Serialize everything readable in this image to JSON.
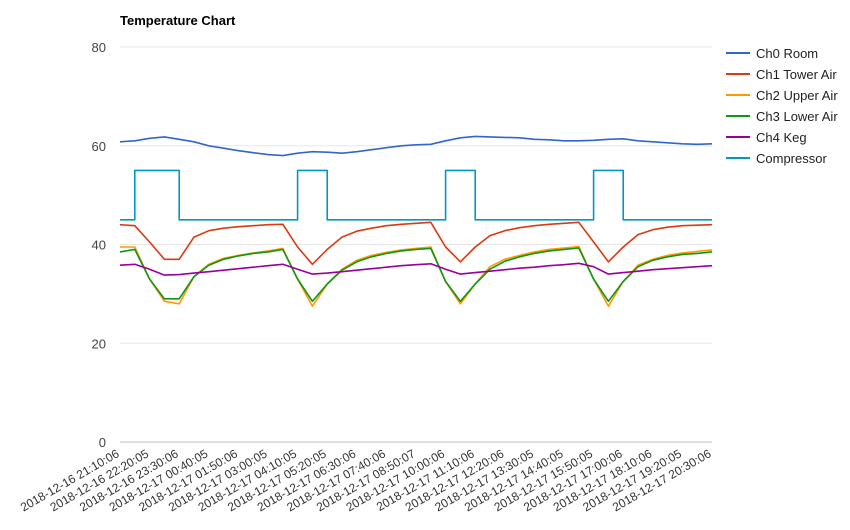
{
  "chart_data": {
    "type": "line",
    "title": "Temperature Chart",
    "xlabel": "",
    "ylabel": "",
    "ylim": [
      0,
      80
    ],
    "yticks": [
      0,
      20,
      40,
      60,
      80
    ],
    "grid": true,
    "legend_position": "right",
    "x_tick_labels": [
      "2018-12-16 21:10:06",
      "2018-12-16 22:20:05",
      "2018-12-16 23:30:06",
      "2018-12-17 00:40:05",
      "2018-12-17 01:50:06",
      "2018-12-17 03:00:05",
      "2018-12-17 04:10:05",
      "2018-12-17 05:20:05",
      "2018-12-17 06:30:06",
      "2018-12-17 07:40:06",
      "2018-12-17 08:50:07",
      "2018-12-17 10:00:06",
      "2018-12-17 11:10:06",
      "2018-12-17 12:20:06",
      "2018-12-17 13:30:05",
      "2018-12-17 14:40:05",
      "2018-12-17 15:50:05",
      "2018-12-17 17:00:06",
      "2018-12-17 18:10:06",
      "2018-12-17 19:20:05",
      "2018-12-17 20:30:06"
    ],
    "x": [
      "2018-12-16 21:10:06",
      "2018-12-16 21:45:00",
      "2018-12-16 22:20:05",
      "2018-12-16 22:55:00",
      "2018-12-16 23:30:06",
      "2018-12-17 00:05:00",
      "2018-12-17 00:40:05",
      "2018-12-17 01:15:00",
      "2018-12-17 01:50:06",
      "2018-12-17 02:25:00",
      "2018-12-17 03:00:05",
      "2018-12-17 03:35:00",
      "2018-12-17 04:10:05",
      "2018-12-17 04:45:00",
      "2018-12-17 05:20:05",
      "2018-12-17 05:55:00",
      "2018-12-17 06:30:06",
      "2018-12-17 07:05:00",
      "2018-12-17 07:40:06",
      "2018-12-17 08:15:00",
      "2018-12-17 08:50:07",
      "2018-12-17 09:25:00",
      "2018-12-17 10:00:06",
      "2018-12-17 10:35:00",
      "2018-12-17 11:10:06",
      "2018-12-17 11:45:00",
      "2018-12-17 12:20:06",
      "2018-12-17 12:55:00",
      "2018-12-17 13:30:05",
      "2018-12-17 14:05:00",
      "2018-12-17 14:40:05",
      "2018-12-17 15:15:00",
      "2018-12-17 15:50:05",
      "2018-12-17 16:25:00",
      "2018-12-17 17:00:06",
      "2018-12-17 17:35:00",
      "2018-12-17 18:10:06",
      "2018-12-17 18:45:00",
      "2018-12-17 19:20:05",
      "2018-12-17 19:55:00",
      "2018-12-17 20:30:06"
    ],
    "series": [
      {
        "name": "Ch0 Room",
        "color": "#3366cc",
        "values": [
          60.8,
          61.0,
          61.5,
          61.8,
          61.3,
          60.8,
          60.0,
          59.5,
          59.0,
          58.6,
          58.2,
          58.0,
          58.5,
          58.8,
          58.7,
          58.5,
          58.8,
          59.2,
          59.6,
          60.0,
          60.2,
          60.3,
          61.0,
          61.6,
          61.9,
          61.8,
          61.7,
          61.6,
          61.3,
          61.2,
          61.0,
          61.0,
          61.1,
          61.3,
          61.4,
          61.0,
          60.8,
          60.6,
          60.4,
          60.3,
          60.4
        ]
      },
      {
        "name": "Ch1 Tower Air",
        "color": "#dc3912",
        "values": [
          44.0,
          43.8,
          40.5,
          37.0,
          37.0,
          41.5,
          42.8,
          43.3,
          43.6,
          43.8,
          44.0,
          44.1,
          39.5,
          36.0,
          39.0,
          41.5,
          42.7,
          43.3,
          43.8,
          44.1,
          44.3,
          44.5,
          39.5,
          36.5,
          39.5,
          41.8,
          42.8,
          43.4,
          43.8,
          44.1,
          44.3,
          44.5,
          40.5,
          36.5,
          39.5,
          42.0,
          43.0,
          43.5,
          43.8,
          43.9,
          44.0
        ]
      },
      {
        "name": "Ch2 Upper Air",
        "color": "#ff9900",
        "values": [
          39.5,
          39.5,
          33.0,
          28.5,
          28.0,
          33.5,
          36.0,
          37.2,
          37.8,
          38.3,
          38.7,
          39.2,
          33.0,
          27.5,
          32.0,
          35.0,
          36.8,
          37.8,
          38.4,
          38.9,
          39.2,
          39.5,
          32.5,
          28.0,
          32.0,
          35.5,
          37.0,
          37.8,
          38.5,
          39.0,
          39.3,
          39.6,
          33.0,
          27.5,
          32.5,
          35.8,
          37.0,
          37.8,
          38.3,
          38.6,
          38.9
        ]
      },
      {
        "name": "Ch3 Lower Air",
        "color": "#109618",
        "values": [
          38.5,
          39.0,
          33.0,
          29.0,
          29.0,
          33.5,
          35.8,
          37.0,
          37.7,
          38.2,
          38.5,
          39.0,
          33.0,
          28.5,
          32.0,
          34.8,
          36.5,
          37.5,
          38.2,
          38.7,
          39.0,
          39.2,
          32.5,
          28.5,
          32.0,
          35.0,
          36.6,
          37.5,
          38.2,
          38.7,
          39.0,
          39.3,
          33.0,
          28.5,
          32.5,
          35.5,
          36.8,
          37.5,
          38.0,
          38.2,
          38.5
        ]
      },
      {
        "name": "Ch4 Keg",
        "color": "#990099",
        "values": [
          35.8,
          36.0,
          35.0,
          33.8,
          33.9,
          34.2,
          34.5,
          34.8,
          35.1,
          35.4,
          35.7,
          36.0,
          35.0,
          34.0,
          34.2,
          34.5,
          34.8,
          35.1,
          35.4,
          35.7,
          35.9,
          36.1,
          35.0,
          34.0,
          34.3,
          34.6,
          34.9,
          35.2,
          35.4,
          35.7,
          35.9,
          36.2,
          35.5,
          34.0,
          34.3,
          34.6,
          34.9,
          35.1,
          35.3,
          35.5,
          35.7
        ]
      },
      {
        "name": "Compressor",
        "color": "#0099c6",
        "step": true,
        "values": [
          45,
          55,
          55,
          55,
          45,
          45,
          45,
          45,
          45,
          45,
          45,
          45,
          55,
          55,
          45,
          45,
          45,
          45,
          45,
          45,
          45,
          45,
          55,
          55,
          45,
          45,
          45,
          45,
          45,
          45,
          45,
          45,
          55,
          55,
          45,
          45,
          45,
          45,
          45,
          45,
          45
        ]
      }
    ]
  }
}
